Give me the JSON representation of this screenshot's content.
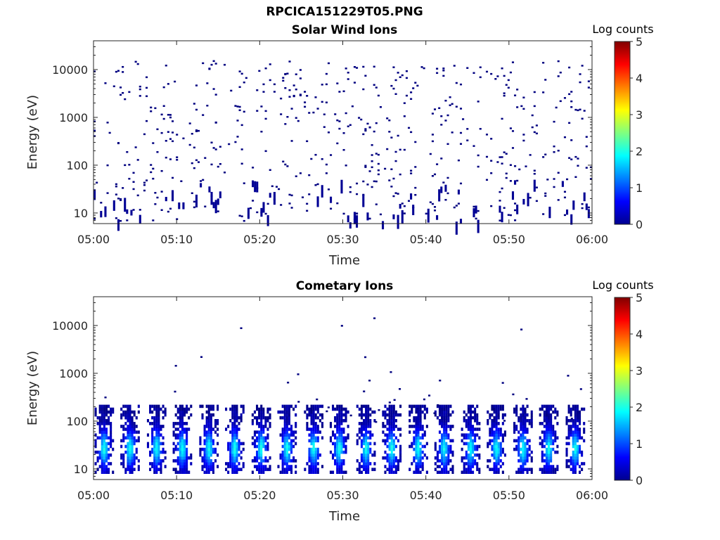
{
  "title": "RPCICA151229T05.PNG",
  "chart_data": [
    {
      "type": "heatmap",
      "title": "Solar Wind Ions",
      "xlabel": "Time",
      "ylabel": "Energy (eV)",
      "xlim": [
        "05:00",
        "06:00"
      ],
      "xticks": [
        "05:00",
        "05:10",
        "05:20",
        "05:30",
        "05:40",
        "05:50",
        "06:00"
      ],
      "ylim": [
        6,
        40000
      ],
      "yscale": "log",
      "yticks": [
        10,
        100,
        1000,
        10000
      ],
      "ytick_labels": [
        "10",
        "100",
        "1000",
        "10000"
      ],
      "colorbar": {
        "label": "Log counts",
        "range": [
          0,
          5
        ],
        "ticks": [
          "0",
          "1",
          "2",
          "3",
          "4",
          "5"
        ]
      },
      "description_of_data": "sparse single-count (log ~0) pixels scattered across all energies 10 eV - 20 keV, denser below 100 eV",
      "data_level_log_counts": 0
    },
    {
      "type": "heatmap",
      "title": "Cometary Ions",
      "xlabel": "Time",
      "ylabel": "Energy (eV)",
      "xlim": [
        "05:00",
        "06:00"
      ],
      "xticks": [
        "05:00",
        "05:10",
        "05:20",
        "05:30",
        "05:40",
        "05:50",
        "06:00"
      ],
      "ylim": [
        6,
        40000
      ],
      "yscale": "log",
      "yticks": [
        10,
        100,
        1000,
        10000
      ],
      "ytick_labels": [
        "10",
        "100",
        "1000",
        "10000"
      ],
      "colorbar": {
        "label": "Log counts",
        "range": [
          0,
          5
        ],
        "ticks": [
          "0",
          "1",
          "2",
          "3",
          "4",
          "5"
        ]
      },
      "bursts_minutes": [
        1.3,
        4.4,
        7.6,
        10.7,
        13.9,
        17.0,
        20.2,
        23.3,
        26.5,
        29.6,
        32.8,
        35.9,
        39.1,
        42.2,
        45.4,
        48.5,
        51.7,
        54.8,
        58.0
      ],
      "burst_energy_range_eV": [
        8,
        200
      ],
      "burst_peak_energy_eV": 25,
      "burst_peak_log_counts": 1.8
    }
  ]
}
